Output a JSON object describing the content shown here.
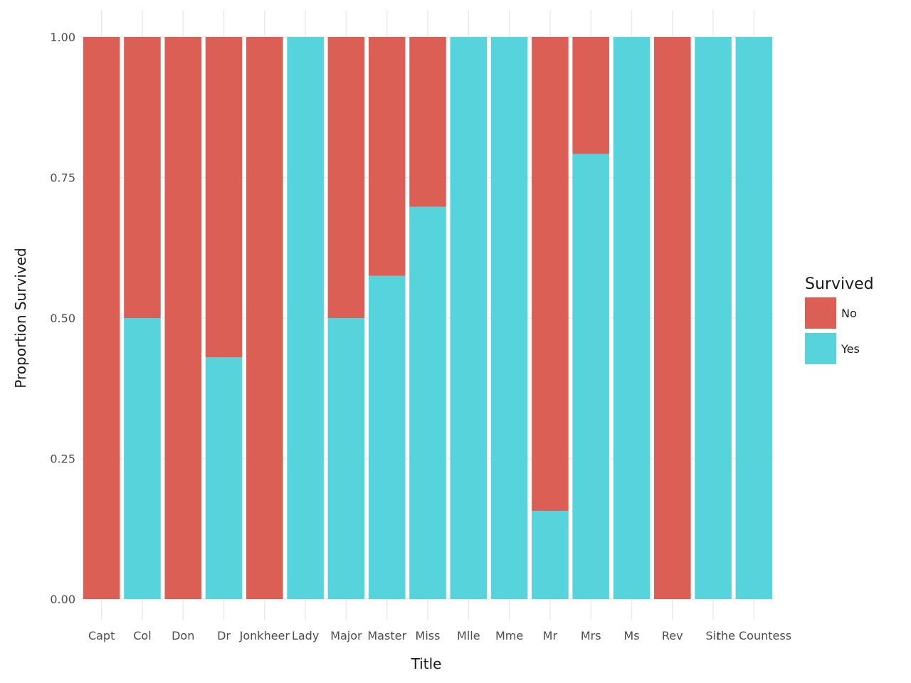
{
  "chart_data": {
    "type": "bar",
    "stacked": true,
    "xlabel": "Title",
    "ylabel": "Proportion Survived",
    "ylim": [
      0,
      1
    ],
    "y_ticks": [
      "0.00",
      "0.25",
      "0.50",
      "0.75",
      "1.00"
    ],
    "grid": true,
    "legend_position": "right",
    "categories": [
      "Capt",
      "Col",
      "Don",
      "Dr",
      "Jonkheer",
      "Lady",
      "Major",
      "Master",
      "Miss",
      "Mlle",
      "Mme",
      "Mr",
      "Mrs",
      "Ms",
      "Rev",
      "Sir",
      "the Countess"
    ],
    "series": [
      {
        "name": "Yes",
        "color": "#56d3db",
        "values": [
          0,
          0.5,
          0,
          0.43,
          0,
          1,
          0.5,
          0.575,
          0.698,
          1,
          1,
          0.157,
          0.792,
          1,
          0,
          1,
          1
        ]
      },
      {
        "name": "No",
        "color": "#dc5f56",
        "values": [
          1,
          0.5,
          1,
          0.57,
          1,
          0,
          0.5,
          0.425,
          0.302,
          0,
          0,
          0.843,
          0.208,
          0,
          1,
          0,
          0
        ]
      }
    ],
    "legend": {
      "title": "Survived",
      "entries": [
        "No",
        "Yes"
      ]
    }
  }
}
